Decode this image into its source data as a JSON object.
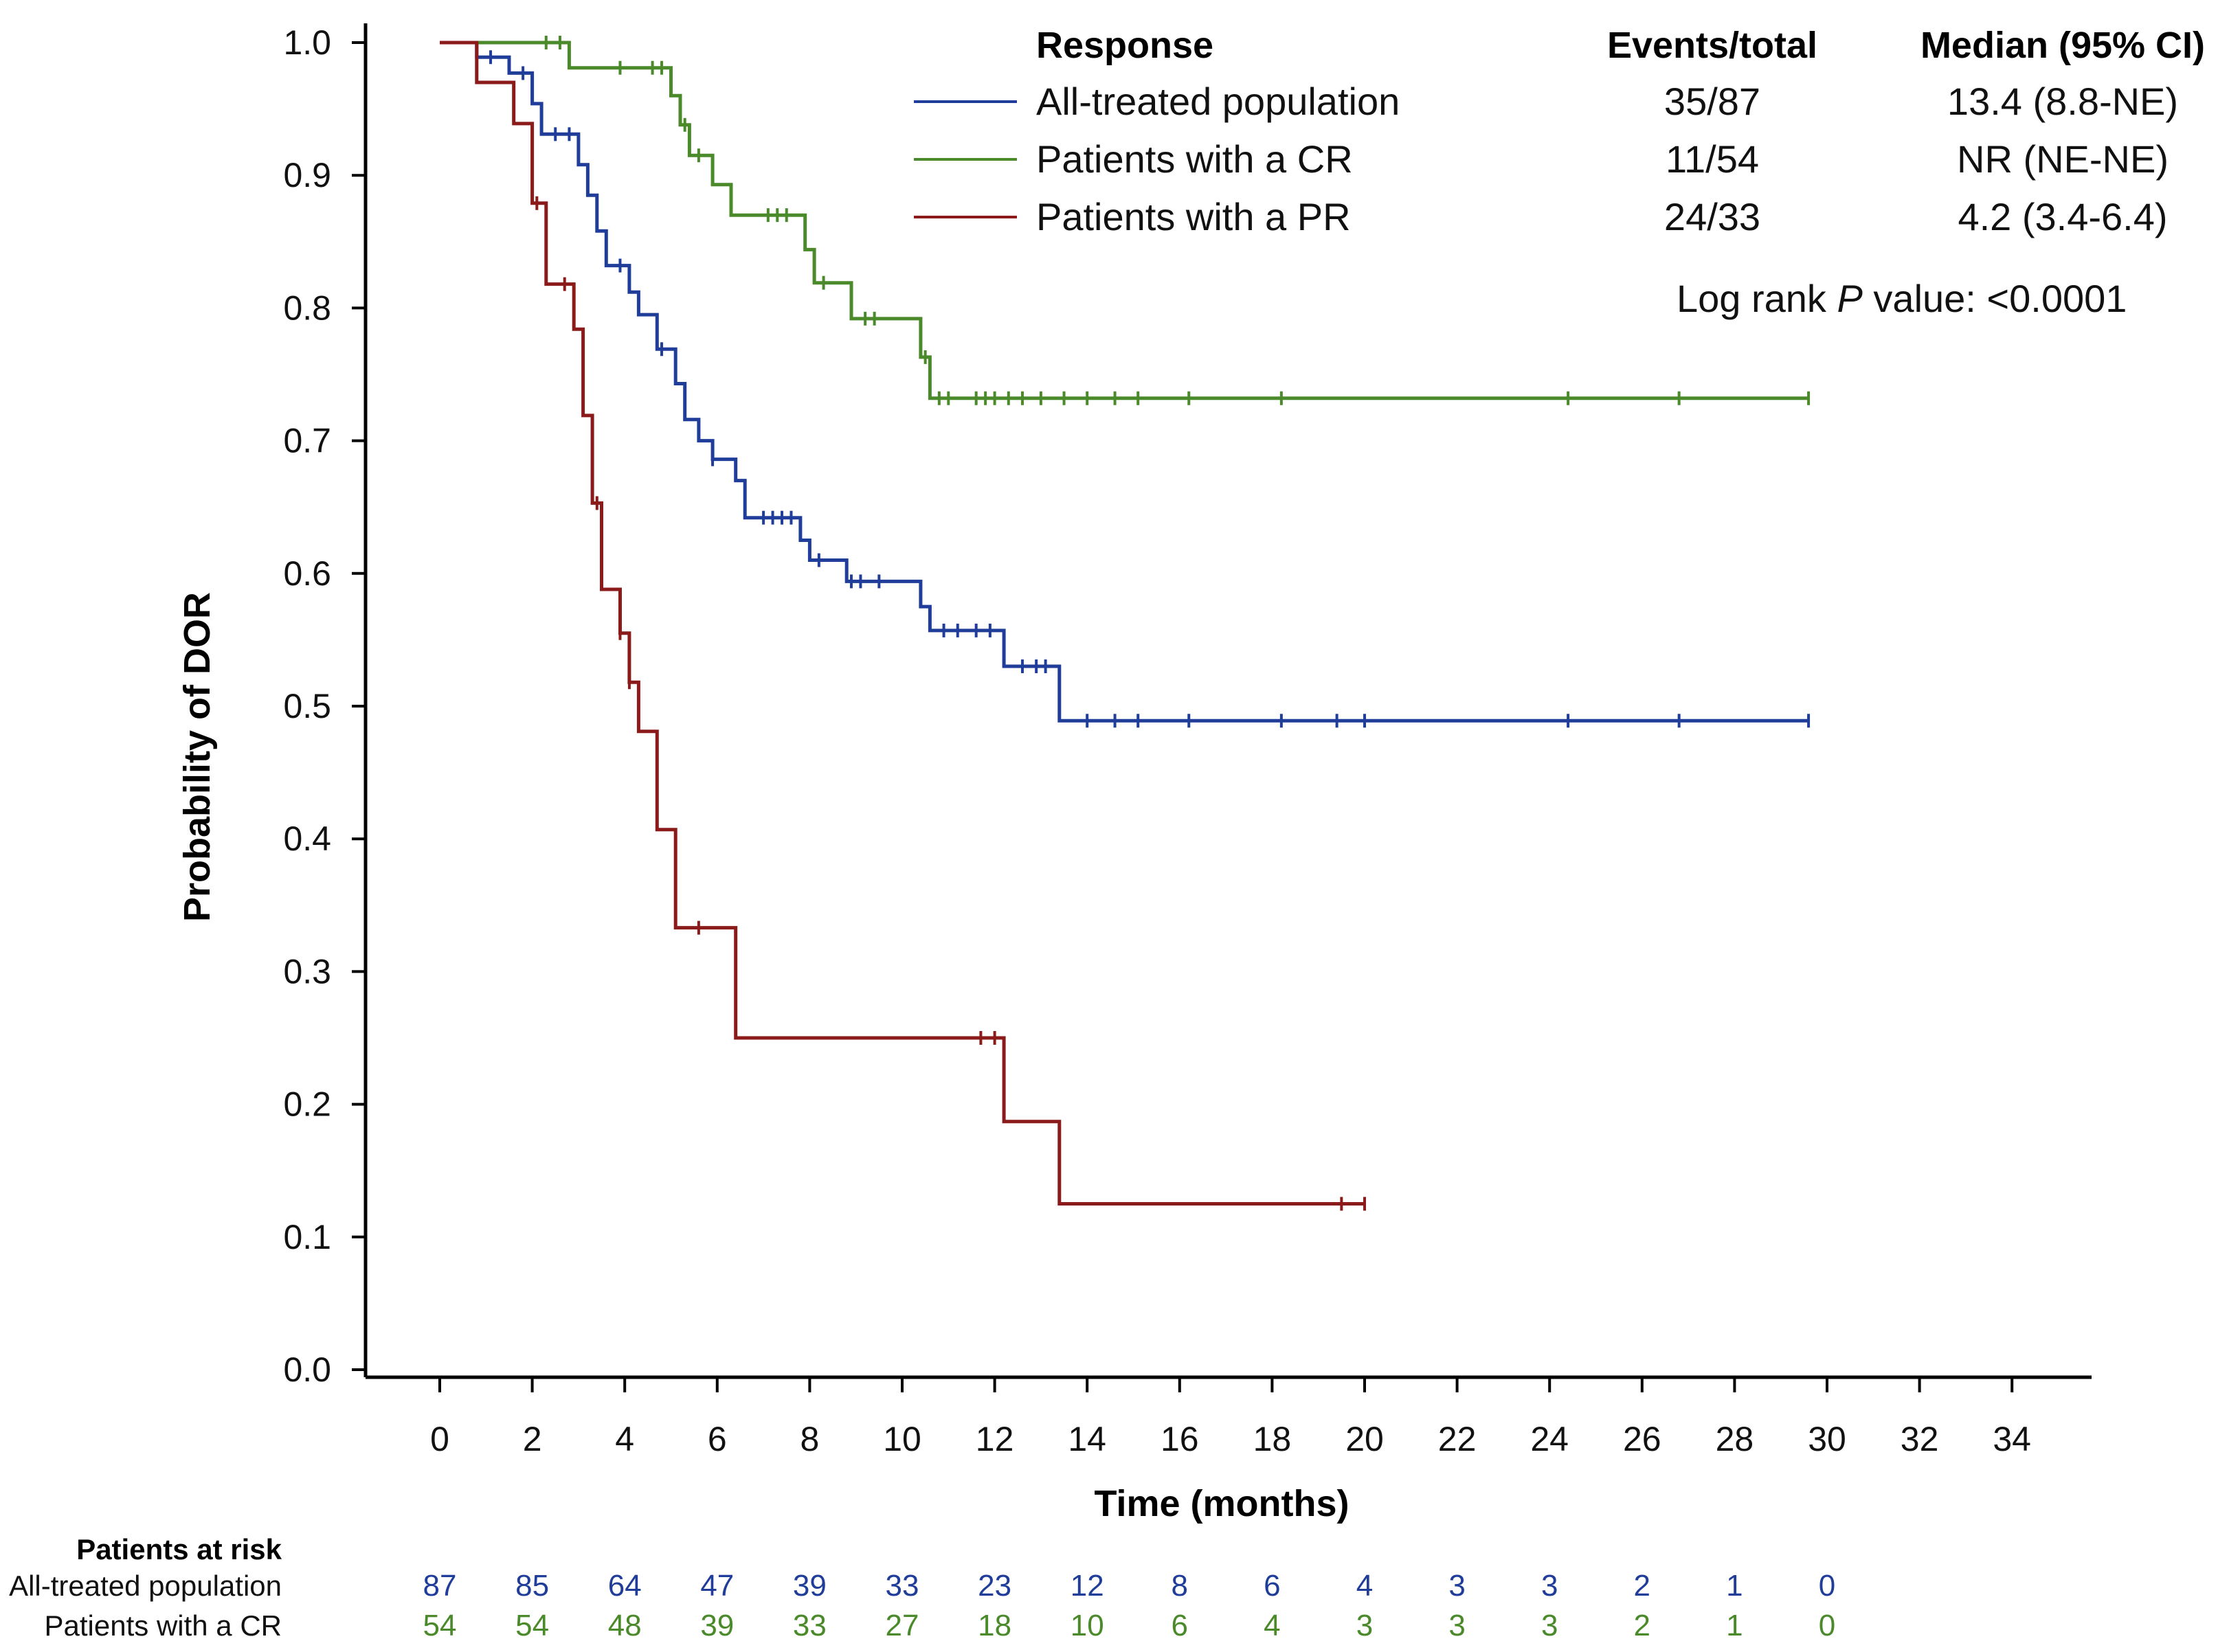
{
  "chart_data": {
    "type": "line",
    "subtype": "kaplan-meier",
    "xlabel": "Time (months)",
    "ylabel": "Probability of DOR",
    "xlim": [
      -1.5,
      35
    ],
    "ylim": [
      0,
      1
    ],
    "xticks": [
      0,
      2,
      4,
      6,
      8,
      10,
      12,
      14,
      16,
      18,
      20,
      22,
      24,
      26,
      28,
      30,
      32,
      34
    ],
    "yticks": [
      0.0,
      0.1,
      0.2,
      0.3,
      0.4,
      0.5,
      0.6,
      0.7,
      0.8,
      0.9,
      1.0
    ],
    "ytick_labels": [
      "0.0",
      "0.1",
      "0.2",
      "0.3",
      "0.4",
      "0.5",
      "0.6",
      "0.7",
      "0.8",
      "0.9",
      "1.0"
    ],
    "legend": {
      "headers": {
        "response": "Response",
        "events": "Events/total",
        "median": "Median (95% CI)"
      },
      "log_rank_prefix": "Log rank ",
      "log_rank_p": "P",
      "log_rank_suffix": " value: <0.0001"
    },
    "series": [
      {
        "name": "All-treated population",
        "color": "#1f3d99",
        "events_total": "35/87",
        "median": "13.4 (8.8-NE)",
        "points": [
          [
            0,
            1.0
          ],
          [
            0.8,
            1.0
          ],
          [
            0.8,
            0.989
          ],
          [
            1.5,
            0.989
          ],
          [
            1.5,
            0.977
          ],
          [
            2,
            0.977
          ],
          [
            2,
            0.954
          ],
          [
            2.2,
            0.954
          ],
          [
            2.2,
            0.931
          ],
          [
            3,
            0.931
          ],
          [
            3,
            0.908
          ],
          [
            3.2,
            0.908
          ],
          [
            3.2,
            0.885
          ],
          [
            3.4,
            0.885
          ],
          [
            3.4,
            0.858
          ],
          [
            3.6,
            0.858
          ],
          [
            3.6,
            0.832
          ],
          [
            4.1,
            0.832
          ],
          [
            4.1,
            0.812
          ],
          [
            4.3,
            0.812
          ],
          [
            4.3,
            0.795
          ],
          [
            4.7,
            0.795
          ],
          [
            4.7,
            0.769
          ],
          [
            5.1,
            0.769
          ],
          [
            5.1,
            0.743
          ],
          [
            5.3,
            0.743
          ],
          [
            5.3,
            0.716
          ],
          [
            5.6,
            0.716
          ],
          [
            5.6,
            0.7
          ],
          [
            5.9,
            0.7
          ],
          [
            5.9,
            0.686
          ],
          [
            6.4,
            0.686
          ],
          [
            6.4,
            0.67
          ],
          [
            6.6,
            0.67
          ],
          [
            6.6,
            0.642
          ],
          [
            7.8,
            0.642
          ],
          [
            7.8,
            0.625
          ],
          [
            8.0,
            0.625
          ],
          [
            8.0,
            0.61
          ],
          [
            8.8,
            0.61
          ],
          [
            8.8,
            0.594
          ],
          [
            10.4,
            0.594
          ],
          [
            10.4,
            0.575
          ],
          [
            10.6,
            0.575
          ],
          [
            10.6,
            0.557
          ],
          [
            12.2,
            0.557
          ],
          [
            12.2,
            0.53
          ],
          [
            13.4,
            0.53
          ],
          [
            13.4,
            0.489
          ],
          [
            29.6,
            0.489
          ]
        ],
        "censor_times": [
          1.1,
          1.8,
          2.5,
          2.8,
          3.9,
          4.8,
          5.9,
          7.0,
          7.2,
          7.4,
          7.6,
          8.2,
          8.9,
          9.1,
          9.5,
          10.9,
          11.2,
          11.6,
          11.9,
          12.6,
          12.9,
          13.1,
          14.0,
          14.6,
          15.1,
          16.2,
          18.2,
          19.4,
          20.0,
          24.4,
          26.8,
          29.6
        ]
      },
      {
        "name": "Patients with a CR",
        "color": "#4a8a2a",
        "events_total": "11/54",
        "median": "NR (NE-NE)",
        "points": [
          [
            0,
            1.0
          ],
          [
            2.8,
            1.0
          ],
          [
            2.8,
            0.981
          ],
          [
            5.0,
            0.981
          ],
          [
            5.0,
            0.96
          ],
          [
            5.2,
            0.96
          ],
          [
            5.2,
            0.938
          ],
          [
            5.4,
            0.938
          ],
          [
            5.4,
            0.915
          ],
          [
            5.9,
            0.915
          ],
          [
            5.9,
            0.893
          ],
          [
            6.3,
            0.893
          ],
          [
            6.3,
            0.87
          ],
          [
            7.9,
            0.87
          ],
          [
            7.9,
            0.844
          ],
          [
            8.1,
            0.844
          ],
          [
            8.1,
            0.819
          ],
          [
            8.9,
            0.819
          ],
          [
            8.9,
            0.792
          ],
          [
            10.4,
            0.792
          ],
          [
            10.4,
            0.763
          ],
          [
            10.6,
            0.763
          ],
          [
            10.6,
            0.732
          ],
          [
            29.6,
            0.732
          ]
        ],
        "censor_times": [
          2.3,
          2.6,
          3.9,
          4.6,
          4.8,
          5.3,
          5.6,
          7.1,
          7.3,
          7.5,
          8.3,
          9.2,
          9.4,
          10.5,
          10.8,
          11.0,
          11.6,
          11.8,
          12.0,
          12.3,
          12.6,
          13.0,
          13.5,
          14.0,
          14.6,
          15.1,
          16.2,
          18.2,
          24.4,
          26.8,
          29.6
        ]
      },
      {
        "name": "Patients with a PR",
        "color": "#8b1a1a",
        "events_total": "24/33",
        "median": "4.2 (3.4-6.4)",
        "points": [
          [
            0,
            1.0
          ],
          [
            0.8,
            1.0
          ],
          [
            0.8,
            0.97
          ],
          [
            1.6,
            0.97
          ],
          [
            1.6,
            0.939
          ],
          [
            2.0,
            0.939
          ],
          [
            2.0,
            0.879
          ],
          [
            2.3,
            0.879
          ],
          [
            2.3,
            0.818
          ],
          [
            2.9,
            0.818
          ],
          [
            2.9,
            0.784
          ],
          [
            3.1,
            0.784
          ],
          [
            3.1,
            0.719
          ],
          [
            3.3,
            0.719
          ],
          [
            3.3,
            0.653
          ],
          [
            3.5,
            0.653
          ],
          [
            3.5,
            0.588
          ],
          [
            3.9,
            0.588
          ],
          [
            3.9,
            0.555
          ],
          [
            4.1,
            0.555
          ],
          [
            4.1,
            0.518
          ],
          [
            4.3,
            0.518
          ],
          [
            4.3,
            0.481
          ],
          [
            4.7,
            0.481
          ],
          [
            4.7,
            0.407
          ],
          [
            5.1,
            0.407
          ],
          [
            5.1,
            0.333
          ],
          [
            6.4,
            0.333
          ],
          [
            6.4,
            0.25
          ],
          [
            12.2,
            0.25
          ],
          [
            12.2,
            0.187
          ],
          [
            13.4,
            0.187
          ],
          [
            13.4,
            0.125
          ],
          [
            20.0,
            0.125
          ]
        ],
        "censor_times": [
          2.1,
          2.7,
          3.4,
          3.9,
          4.1,
          5.6,
          11.7,
          12.0,
          19.5,
          20.0
        ]
      }
    ],
    "risk_table": {
      "title": "Patients at risk",
      "times": [
        0,
        2,
        4,
        6,
        8,
        10,
        12,
        14,
        16,
        18,
        20,
        22,
        24,
        26,
        28,
        30
      ],
      "rows": [
        {
          "label": "All-treated population",
          "color": "#1f3d99",
          "values": [
            87,
            85,
            64,
            47,
            39,
            33,
            23,
            12,
            8,
            6,
            4,
            3,
            3,
            2,
            1,
            0
          ]
        },
        {
          "label": "Patients with a CR",
          "color": "#4a8a2a",
          "values": [
            54,
            54,
            48,
            39,
            33,
            27,
            18,
            10,
            6,
            4,
            3,
            3,
            3,
            2,
            1,
            0
          ]
        }
      ]
    }
  }
}
